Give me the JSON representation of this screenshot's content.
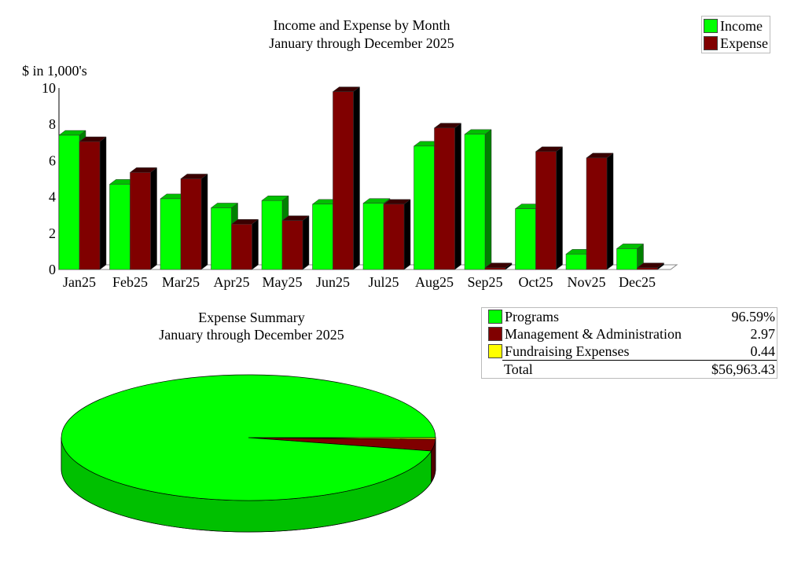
{
  "chart_data": [
    {
      "type": "bar",
      "title": "Income and Expense by Month",
      "subtitle": "January through December 2025",
      "ylabel": "$ in 1,000's",
      "ylim": [
        0,
        10
      ],
      "yticks": [
        0,
        2,
        4,
        6,
        8,
        10
      ],
      "categories": [
        "Jan25",
        "Feb25",
        "Mar25",
        "Apr25",
        "May25",
        "Jun25",
        "Jul25",
        "Aug25",
        "Sep25",
        "Oct25",
        "Nov25",
        "Dec25"
      ],
      "series": [
        {
          "name": "Income",
          "color": "#00ff00",
          "values": [
            7.4,
            4.7,
            3.9,
            3.4,
            3.8,
            3.6,
            3.65,
            6.8,
            7.45,
            3.35,
            0.85,
            1.15
          ]
        },
        {
          "name": "Expense",
          "color": "#800000",
          "values": [
            7.05,
            5.35,
            5.0,
            2.5,
            2.7,
            9.8,
            3.6,
            7.8,
            0.1,
            6.5,
            6.15,
            0.1
          ]
        }
      ],
      "legend": "top-right"
    },
    {
      "type": "pie",
      "title": "Expense Summary",
      "subtitle": "January through December 2025",
      "slices": [
        {
          "label": "Programs",
          "value": 96.59,
          "display": "96.59%",
          "color": "#00ff00"
        },
        {
          "label": "Management & Administration",
          "value": 2.97,
          "display": "2.97",
          "color": "#800000"
        },
        {
          "label": "Fundraising Expenses",
          "value": 0.44,
          "display": "0.44",
          "color": "#ffff00"
        }
      ],
      "total_label": "Total",
      "total_value": "$56,963.43"
    }
  ]
}
